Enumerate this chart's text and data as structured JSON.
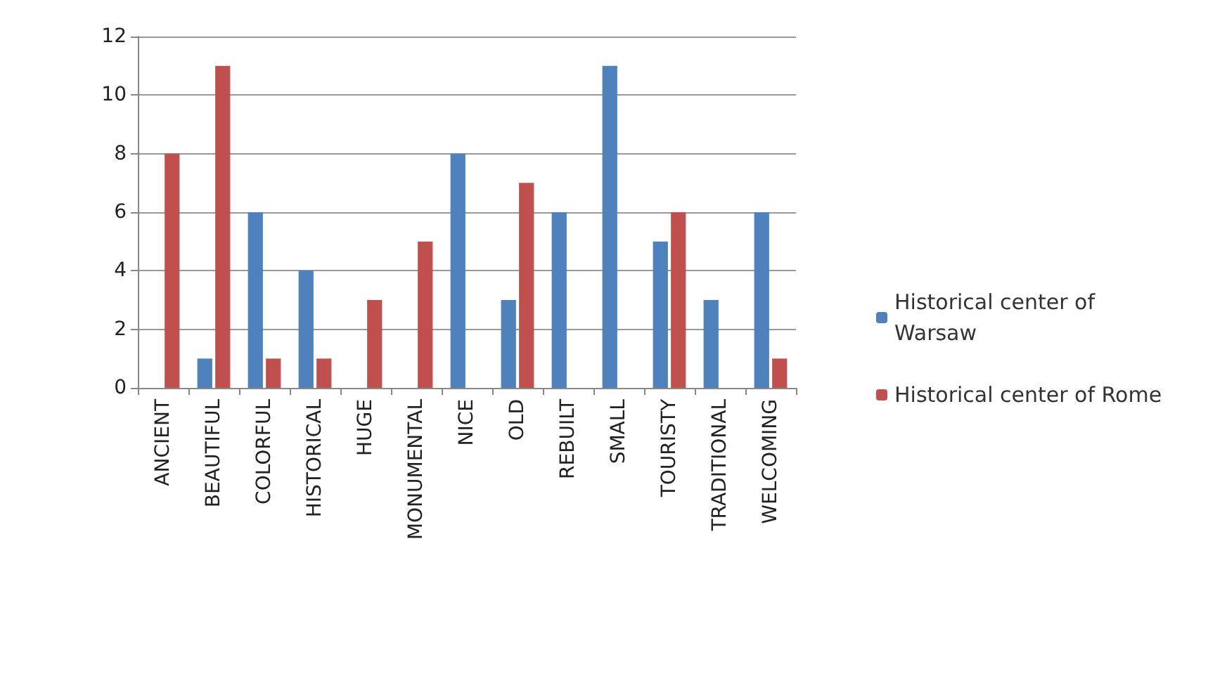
{
  "chart_data": {
    "type": "bar",
    "categories": [
      "ANCIENT",
      "BEAUTIFUL",
      "COLORFUL",
      "HISTORICAL",
      "HUGE",
      "MONUMENTAL",
      "NICE",
      "OLD",
      "REBUILT",
      "SMALL",
      "TOURISTY",
      "TRADITIONAL",
      "WELCOMING"
    ],
    "series": [
      {
        "name": "Historical center of Warsaw",
        "color": "#4f81bd",
        "values": [
          0,
          1,
          6,
          4,
          0,
          0,
          8,
          3,
          6,
          11,
          5,
          3,
          6
        ]
      },
      {
        "name": "Historical center of Rome",
        "color": "#c0504d",
        "values": [
          8,
          11,
          1,
          1,
          3,
          5,
          0,
          7,
          0,
          0,
          6,
          0,
          1
        ]
      }
    ],
    "ylim": [
      0,
      12
    ],
    "yticks": [
      0,
      2,
      4,
      6,
      8,
      10,
      12
    ],
    "grid": "y",
    "legend": "right"
  }
}
